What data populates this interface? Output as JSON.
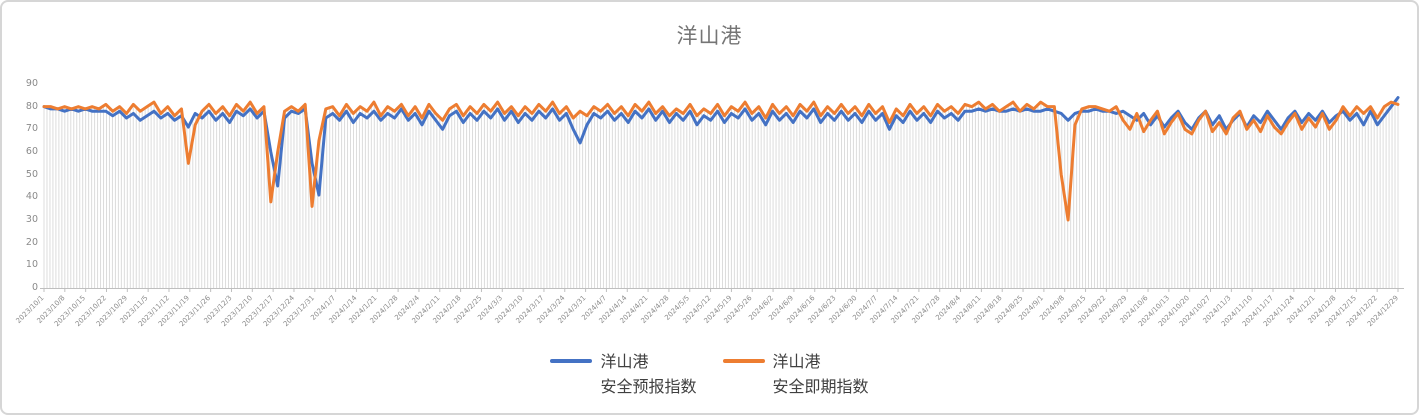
{
  "chart": {
    "title": "洋山港"
  },
  "chart_data": {
    "type": "line",
    "title": "洋山港",
    "xlabel": "",
    "ylabel": "",
    "ylim": [
      0,
      90
    ],
    "y_ticks": [
      0,
      10,
      20,
      30,
      40,
      50,
      60,
      70,
      80,
      90
    ],
    "grid": "vertical-drop-lines",
    "legend_position": "bottom",
    "x_tick_labels": [
      "2023/10/1",
      "2023/10/8",
      "2023/10/15",
      "2023/10/22",
      "2023/10/29",
      "2023/11/5",
      "2023/11/12",
      "2023/11/19",
      "2023/11/26",
      "2023/12/3",
      "2023/12/10",
      "2023/12/17",
      "2023/12/24",
      "2023/12/31",
      "2024/1/7",
      "2024/1/14",
      "2024/1/21",
      "2024/1/28",
      "2024/2/4",
      "2024/2/11",
      "2024/2/18",
      "2024/2/25",
      "2024/3/3",
      "2024/3/10",
      "2024/3/17",
      "2024/3/24",
      "2024/3/31",
      "2024/4/7",
      "2024/4/14",
      "2024/4/21",
      "2024/4/28",
      "2024/5/5",
      "2024/5/12",
      "2024/5/19",
      "2024/5/26",
      "2024/6/2",
      "2024/6/9",
      "2024/6/16",
      "2024/6/23",
      "2024/6/30",
      "2024/7/7",
      "2024/7/14",
      "2024/7/21",
      "2024/7/28",
      "2024/8/4",
      "2024/8/11",
      "2024/8/18",
      "2024/8/25",
      "2024/9/1",
      "2024/9/8",
      "2024/9/15",
      "2024/9/22",
      "2024/9/29",
      "2024/10/6",
      "2024/10/13",
      "2024/10/20",
      "2024/10/27",
      "2024/11/3",
      "2024/11/10",
      "2024/11/17",
      "2024/11/24",
      "2024/12/1",
      "2024/12/8",
      "2024/12/15",
      "2024/12/22",
      "2024/12/29"
    ],
    "points_per_label_interval": 3,
    "series": [
      {
        "name": "洋山港 安全预报指数",
        "legend_lines": [
          "洋山港",
          "安全预报指数"
        ],
        "color": "#4472C4",
        "values": [
          80,
          79,
          79,
          78,
          79,
          78,
          79,
          78,
          78,
          78,
          76,
          78,
          75,
          77,
          74,
          76,
          78,
          75,
          77,
          74,
          76,
          71,
          77,
          75,
          78,
          74,
          77,
          73,
          78,
          76,
          79,
          75,
          78,
          60,
          45,
          75,
          78,
          77,
          79,
          55,
          41,
          75,
          77,
          74,
          78,
          73,
          77,
          75,
          78,
          74,
          77,
          75,
          79,
          74,
          77,
          72,
          78,
          74,
          70,
          76,
          78,
          73,
          77,
          74,
          78,
          75,
          79,
          74,
          78,
          73,
          77,
          74,
          78,
          75,
          79,
          74,
          77,
          70,
          64,
          72,
          77,
          75,
          78,
          74,
          77,
          73,
          78,
          75,
          79,
          74,
          78,
          73,
          77,
          74,
          78,
          72,
          76,
          74,
          78,
          73,
          77,
          75,
          79,
          74,
          77,
          72,
          78,
          74,
          77,
          73,
          78,
          75,
          79,
          73,
          77,
          74,
          78,
          74,
          77,
          73,
          78,
          74,
          77,
          70,
          76,
          73,
          78,
          74,
          77,
          73,
          78,
          75,
          77,
          74,
          78,
          78,
          79,
          78,
          79,
          78,
          78,
          79,
          78,
          79,
          78,
          78,
          79,
          78,
          77,
          74,
          77,
          78,
          78,
          79,
          78,
          78,
          77,
          78,
          76,
          74,
          77,
          72,
          76,
          71,
          75,
          78,
          73,
          70,
          75,
          78,
          72,
          76,
          70,
          74,
          77,
          71,
          76,
          73,
          78,
          74,
          70,
          75,
          78,
          73,
          77,
          74,
          78,
          73,
          76,
          78,
          74,
          77,
          72,
          78,
          72,
          76,
          80,
          84
        ]
      },
      {
        "name": "洋山港 安全即期指数",
        "legend_lines": [
          "洋山港",
          "安全即期指数"
        ],
        "color": "#ED7D31",
        "values": [
          80,
          80,
          79,
          80,
          79,
          80,
          79,
          80,
          79,
          81,
          78,
          80,
          77,
          81,
          78,
          80,
          82,
          77,
          80,
          76,
          79,
          55,
          72,
          78,
          81,
          77,
          80,
          76,
          81,
          78,
          82,
          77,
          80,
          38,
          60,
          78,
          80,
          78,
          81,
          36,
          65,
          79,
          80,
          76,
          81,
          77,
          80,
          78,
          82,
          76,
          80,
          78,
          81,
          76,
          80,
          75,
          81,
          77,
          74,
          79,
          81,
          76,
          80,
          77,
          81,
          78,
          82,
          77,
          80,
          76,
          80,
          77,
          81,
          78,
          82,
          77,
          80,
          75,
          78,
          76,
          80,
          78,
          81,
          77,
          80,
          76,
          81,
          78,
          82,
          77,
          80,
          76,
          79,
          77,
          81,
          76,
          79,
          77,
          81,
          76,
          80,
          78,
          82,
          77,
          80,
          75,
          81,
          77,
          80,
          76,
          81,
          78,
          82,
          76,
          80,
          77,
          81,
          77,
          80,
          76,
          81,
          77,
          80,
          73,
          79,
          76,
          81,
          77,
          80,
          76,
          81,
          78,
          80,
          77,
          81,
          80,
          82,
          79,
          81,
          78,
          80,
          82,
          78,
          81,
          79,
          82,
          80,
          80,
          50,
          30,
          72,
          79,
          80,
          80,
          79,
          78,
          80,
          74,
          70,
          77,
          69,
          74,
          78,
          68,
          73,
          77,
          70,
          68,
          74,
          78,
          69,
          73,
          68,
          75,
          78,
          70,
          74,
          69,
          76,
          71,
          68,
          73,
          77,
          70,
          75,
          71,
          77,
          70,
          74,
          80,
          76,
          80,
          77,
          80,
          75,
          80,
          82,
          81
        ]
      }
    ],
    "colors": {
      "forecast_series": "#4472C4",
      "spot_series": "#ED7D31",
      "drop_lines": "#DCDCDC",
      "axis_line": "#BFBFBF",
      "axis_text": "#8A8A8A",
      "title_text": "#757575",
      "legend_text": "#404040"
    }
  }
}
